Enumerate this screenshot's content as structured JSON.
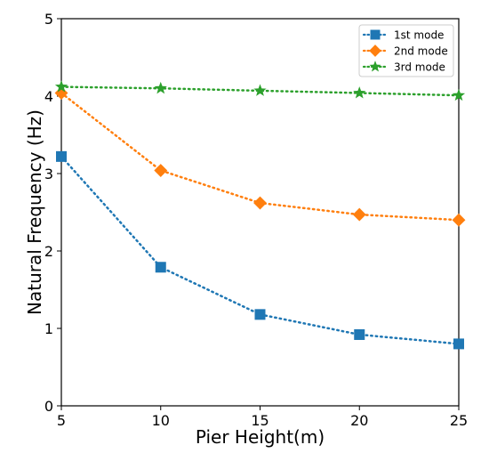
{
  "chart_data": {
    "type": "line",
    "title": "",
    "xlabel": "Pier Height(m)",
    "ylabel": "Natural Frequency (Hz)",
    "xlim": [
      5,
      25
    ],
    "ylim": [
      0,
      5
    ],
    "x_ticks": [
      "5",
      "10",
      "15",
      "20",
      "25"
    ],
    "y_ticks": [
      "0",
      "1",
      "2",
      "3",
      "4",
      "5"
    ],
    "x": [
      5,
      10,
      15,
      20,
      25
    ],
    "grid": false,
    "legend_position": "top-right",
    "series": [
      {
        "name": "1st mode",
        "values": [
          3.22,
          1.79,
          1.18,
          0.92,
          0.8
        ],
        "color": "#1f77b4",
        "marker": "square",
        "line_style": "dotted"
      },
      {
        "name": "2nd mode",
        "values": [
          4.04,
          3.04,
          2.62,
          2.47,
          2.4
        ],
        "color": "#ff7f0e",
        "marker": "diamond",
        "line_style": "dotted"
      },
      {
        "name": "3rd mode",
        "values": [
          4.12,
          4.1,
          4.07,
          4.04,
          4.01
        ],
        "color": "#2ca02c",
        "marker": "star",
        "line_style": "dotted"
      }
    ]
  }
}
